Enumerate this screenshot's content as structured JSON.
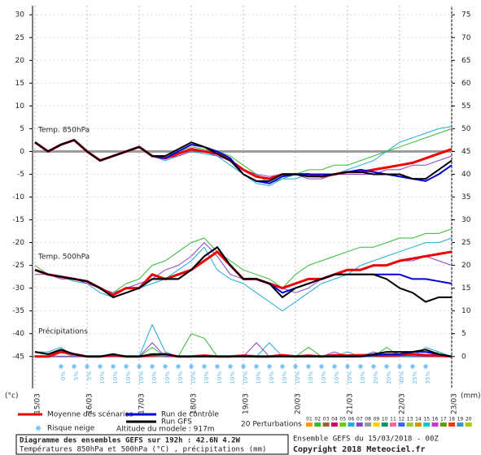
{
  "chart_data": {
    "type": "line",
    "x_unit_label": "(°c)",
    "y2_unit_label": "(mm)",
    "xlim": [
      0,
      192
    ],
    "xticks": [
      {
        "value": 0,
        "label": "15/03"
      },
      {
        "value": 24,
        "label": "16/03"
      },
      {
        "value": 48,
        "label": "17/03"
      },
      {
        "value": 72,
        "label": "18/03"
      },
      {
        "value": 96,
        "label": "19/03"
      },
      {
        "value": 120,
        "label": "20/03"
      },
      {
        "value": 144,
        "label": "21/03"
      },
      {
        "value": 168,
        "label": "22/03"
      },
      {
        "value": 192,
        "label": "23/03"
      }
    ],
    "x": [
      0,
      6,
      12,
      18,
      24,
      30,
      36,
      42,
      48,
      54,
      60,
      66,
      72,
      78,
      84,
      90,
      96,
      102,
      108,
      114,
      120,
      126,
      132,
      138,
      144,
      150,
      156,
      162,
      168,
      174,
      180,
      186,
      192
    ],
    "ylim": [
      -52,
      32
    ],
    "yticks": [
      30,
      25,
      20,
      15,
      10,
      5,
      0,
      -5,
      -10,
      -15,
      -20,
      -25,
      -30,
      -35,
      -40,
      -45
    ],
    "y2lim": [
      -7,
      77
    ],
    "y2ticks": [
      75,
      70,
      65,
      60,
      55,
      50,
      45,
      40,
      35,
      30,
      25,
      20,
      15,
      10,
      5,
      0
    ],
    "zero_line": 0,
    "grid": true,
    "panels": [
      {
        "label": "Temp. 850hPa",
        "axis": "y",
        "series": [
          {
            "name": "P1",
            "color": "#33bb33",
            "width": 1,
            "values": [
              2,
              0,
              1.5,
              2.5,
              0,
              -2,
              -1,
              0,
              1,
              -1,
              -1,
              0,
              1,
              0.5,
              0,
              -1,
              -3,
              -5,
              -7,
              -6,
              -5,
              -4,
              -4,
              -3,
              -3,
              -2,
              -1,
              0,
              1,
              2,
              3,
              4,
              5
            ]
          },
          {
            "name": "P2",
            "color": "#22aadd",
            "width": 1,
            "values": [
              2,
              0,
              1.5,
              2.5,
              0,
              -2,
              -1,
              0,
              1,
              -1,
              -2,
              -1,
              0,
              -0.5,
              -1,
              -3,
              -5,
              -7,
              -7.5,
              -6,
              -6,
              -5,
              -5,
              -5,
              -4,
              -3,
              -2,
              0,
              2,
              3,
              4,
              5,
              5.5
            ]
          },
          {
            "name": "P3",
            "color": "#8844cc",
            "width": 1,
            "values": [
              2,
              0,
              1.5,
              2.5,
              0,
              -2,
              -1,
              0,
              1,
              -1,
              -1.5,
              -1,
              0,
              0,
              -1,
              -2,
              -4,
              -5,
              -5.5,
              -5,
              -5,
              -6,
              -6,
              -5,
              -5,
              -5,
              -5,
              -4,
              -4,
              -3,
              -3,
              -2,
              -1
            ]
          },
          {
            "name": "Moyenne des scénarios",
            "color": "#ee0000",
            "width": 3,
            "values": [
              2,
              0,
              1.5,
              2.5,
              0,
              -2,
              -1,
              0,
              1,
              -1,
              -1.5,
              -0.5,
              0.5,
              0,
              -0.5,
              -2,
              -4,
              -5.5,
              -6,
              -5,
              -5,
              -5,
              -5.5,
              -5,
              -4.5,
              -4.5,
              -4,
              -3.5,
              -3,
              -2.5,
              -1.5,
              -0.5,
              0.5
            ]
          },
          {
            "name": "Run de contrôle",
            "color": "#0000dd",
            "width": 2,
            "values": [
              2,
              0,
              1.5,
              2.5,
              0,
              -2,
              -1,
              0,
              1,
              -1,
              -1.5,
              0,
              1.5,
              1,
              0,
              -1.5,
              -5,
              -6.5,
              -7,
              -5.5,
              -5,
              -5,
              -5,
              -5,
              -4.5,
              -4,
              -4.5,
              -5,
              -5.5,
              -6,
              -6.5,
              -5,
              -3
            ]
          },
          {
            "name": "Run GFS",
            "color": "#000000",
            "width": 2,
            "values": [
              2,
              0,
              1.5,
              2.5,
              0,
              -2,
              -1,
              0,
              1,
              -1,
              -1,
              0.5,
              2,
              1,
              -0.5,
              -2,
              -5,
              -6.5,
              -6.5,
              -5,
              -5,
              -5.5,
              -5.5,
              -5,
              -4.5,
              -4.5,
              -5,
              -5,
              -5,
              -6,
              -6,
              -4,
              -2
            ]
          }
        ]
      },
      {
        "label": "Temp. 500hPa",
        "axis": "y",
        "series": [
          {
            "name": "P1",
            "color": "#33bb33",
            "width": 1,
            "values": [
              -25,
              -27,
              -27.5,
              -28,
              -28.5,
              -30,
              -31,
              -29,
              -28,
              -25,
              -24,
              -22,
              -20,
              -19,
              -22,
              -24,
              -26,
              -27,
              -28,
              -30,
              -27,
              -25,
              -24,
              -23,
              -22,
              -21,
              -21,
              -20,
              -19,
              -19,
              -18,
              -18,
              -17
            ]
          },
          {
            "name": "P2",
            "color": "#22aadd",
            "width": 1,
            "values": [
              -26,
              -27,
              -27.5,
              -28.5,
              -29,
              -31,
              -32,
              -31,
              -30,
              -29,
              -28,
              -26,
              -24,
              -21,
              -26,
              -28,
              -29,
              -31,
              -33,
              -35,
              -33,
              -31,
              -29,
              -28,
              -27,
              -25,
              -24,
              -23,
              -22,
              -21,
              -20,
              -20,
              -19
            ]
          },
          {
            "name": "P3",
            "color": "#8844cc",
            "width": 1,
            "values": [
              -27,
              -27,
              -28,
              -28,
              -29,
              -30,
              -31,
              -30,
              -29,
              -28,
              -26,
              -25,
              -23,
              -20,
              -23,
              -27,
              -28,
              -28,
              -29,
              -30,
              -31,
              -30,
              -28,
              -27,
              -26,
              -26,
              -25,
              -25,
              -24,
              -24,
              -23,
              -24,
              -25
            ]
          },
          {
            "name": "Moyenne des scénarios",
            "color": "#ee0000",
            "width": 3,
            "values": [
              -26,
              -27,
              -27.5,
              -28,
              -28.5,
              -30,
              -31.5,
              -30,
              -30,
              -27,
              -28,
              -27,
              -26,
              -24,
              -22,
              -25,
              -28,
              -28,
              -29,
              -30,
              -29,
              -28,
              -28,
              -27,
              -26,
              -26,
              -25,
              -25,
              -24,
              -23.5,
              -23,
              -22.5,
              -22
            ]
          },
          {
            "name": "Run de contrôle",
            "color": "#0000dd",
            "width": 2,
            "values": [
              -26,
              -27,
              -27.5,
              -28,
              -28.5,
              -30,
              -32,
              -31,
              -30,
              -28,
              -28,
              -28,
              -26,
              -23,
              -21,
              -25,
              -28,
              -28,
              -29,
              -31,
              -30,
              -29,
              -28,
              -27,
              -27,
              -27,
              -27,
              -27,
              -27,
              -28,
              -28,
              -28.5,
              -29
            ]
          },
          {
            "name": "Run GFS",
            "color": "#000000",
            "width": 2,
            "values": [
              -26,
              -27,
              -27.5,
              -28,
              -28.5,
              -30,
              -32,
              -31,
              -30,
              -28,
              -28,
              -28,
              -26,
              -23,
              -21,
              -25,
              -28,
              -28,
              -29,
              -32,
              -30,
              -29,
              -28,
              -27,
              -27,
              -27,
              -27,
              -28,
              -30,
              -31,
              -33,
              -32,
              -32
            ]
          }
        ]
      },
      {
        "label": "Précipitations",
        "axis": "y2",
        "series": [
          {
            "name": "P1",
            "color": "#33bb33",
            "width": 1,
            "values": [
              0,
              0,
              1,
              0,
              0,
              0,
              0,
              0,
              0,
              2,
              0,
              0,
              5,
              4,
              0,
              0,
              0,
              0,
              0,
              0,
              0,
              2,
              0,
              0,
              0,
              0,
              0,
              2,
              0,
              0,
              0,
              1,
              0
            ]
          },
          {
            "name": "P2",
            "color": "#22aadd",
            "width": 1,
            "values": [
              1,
              1,
              2,
              0,
              0,
              0,
              0,
              0,
              0,
              7,
              1,
              0,
              0,
              0,
              0,
              0,
              0,
              0,
              3,
              0,
              0,
              0,
              0,
              0,
              1,
              0,
              0,
              0,
              0,
              0,
              2,
              1,
              0
            ]
          },
          {
            "name": "P3",
            "color": "#8844cc",
            "width": 1,
            "values": [
              0,
              0,
              0,
              0,
              0,
              0,
              0,
              0,
              0,
              3,
              0,
              0,
              0,
              0,
              0,
              0,
              0,
              3,
              0,
              0,
              0,
              0,
              0,
              1,
              0,
              0,
              1,
              0,
              1,
              0,
              0,
              0,
              0
            ]
          },
          {
            "name": "Moyenne des scénarios",
            "color": "#ee0000",
            "width": 3,
            "values": [
              0,
              0,
              1,
              0.5,
              0,
              0,
              0.3,
              0,
              0,
              0.3,
              0.5,
              0,
              0,
              0.2,
              0,
              0,
              0.2,
              0,
              0,
              0.3,
              0,
              0.2,
              0,
              0.3,
              0.2,
              0.3,
              0.3,
              0.2,
              0.3,
              0.5,
              0.3,
              0.2,
              0
            ]
          },
          {
            "name": "Run de contrôle",
            "color": "#0000dd",
            "width": 2,
            "values": [
              1,
              0.5,
              1.5,
              0.5,
              0,
              0,
              0.5,
              0,
              0,
              0.5,
              0.5,
              0,
              0,
              0,
              0,
              0,
              0,
              0,
              0,
              0,
              0,
              0,
              0,
              0,
              0,
              0,
              0.3,
              0.5,
              0.5,
              1,
              1,
              0.5,
              0
            ]
          },
          {
            "name": "Run GFS",
            "color": "#000000",
            "width": 2,
            "values": [
              1,
              0.5,
              1.5,
              0.5,
              0,
              0,
              0.5,
              0,
              0,
              0.5,
              0.5,
              0,
              0,
              0,
              0,
              0,
              0,
              0,
              0,
              0,
              0,
              0,
              0,
              0,
              0,
              0,
              0.5,
              1,
              1,
              1,
              1.5,
              0.5,
              0
            ]
          }
        ]
      }
    ],
    "snow_risk": {
      "x": [
        12,
        18,
        24,
        30,
        36,
        42,
        48,
        54,
        60,
        66,
        72,
        78,
        84,
        90,
        96,
        102,
        108,
        114,
        120,
        126,
        132,
        138,
        144,
        150,
        156,
        162,
        168,
        174,
        180
      ],
      "values": [
        0,
        5,
        5,
        10,
        10,
        10,
        10,
        10,
        10,
        10,
        10,
        10,
        10,
        10,
        10,
        10,
        10,
        10,
        10,
        10,
        10,
        10,
        10,
        10,
        20,
        20,
        40,
        25,
        35
      ],
      "value_labels": [
        "0%",
        "5%",
        "5%",
        "10%",
        "10%",
        "10%",
        "10%",
        "10%",
        "10%",
        "10%",
        "10%",
        "10%",
        "10%",
        "10%",
        "10%",
        "10%",
        "10%",
        "10%",
        "10%",
        "10%",
        "10%",
        "10%",
        "10%",
        "10%",
        "20%",
        "20%",
        "40%",
        "25%",
        "35%"
      ],
      "color": "#66bbee"
    },
    "legend": {
      "mean": "Moyenne des scénarios",
      "control": "Run de contrôle",
      "gfs": "Run GFS",
      "snow": "Risque neige",
      "altitude": "Altitude du modele : 917m",
      "perturbations": "20 Perturbations",
      "members": [
        {
          "name": "01",
          "color": "#ff9900"
        },
        {
          "name": "02",
          "color": "#33bb33"
        },
        {
          "name": "03",
          "color": "#996633"
        },
        {
          "name": "04",
          "color": "#cc0066"
        },
        {
          "name": "05",
          "color": "#66cc00"
        },
        {
          "name": "06",
          "color": "#22aadd"
        },
        {
          "name": "07",
          "color": "#8844cc"
        },
        {
          "name": "08",
          "color": "#999999"
        },
        {
          "name": "09",
          "color": "#ffcc00"
        },
        {
          "name": "10",
          "color": "#009966"
        },
        {
          "name": "11",
          "color": "#ff6699"
        },
        {
          "name": "12",
          "color": "#3366ff"
        },
        {
          "name": "13",
          "color": "#99cc33"
        },
        {
          "name": "14",
          "color": "#cc9900"
        },
        {
          "name": "15",
          "color": "#00cccc"
        },
        {
          "name": "16",
          "color": "#cc33cc"
        },
        {
          "name": "17",
          "color": "#669900"
        },
        {
          "name": "18",
          "color": "#ff3300"
        },
        {
          "name": "19",
          "color": "#3399cc"
        },
        {
          "name": "20",
          "color": "#aacc00"
        }
      ]
    },
    "footer": {
      "title": "Diagramme des ensembles GEFS sur 192h : 42.6N 4.2W",
      "subtitle": "Températures 850hPa et 500hPa (°C) , précipitations (mm)",
      "run": "Ensemble GEFS du 15/03/2018 - 00Z",
      "copyright": "Copyright 2018 Meteociel.fr"
    }
  }
}
